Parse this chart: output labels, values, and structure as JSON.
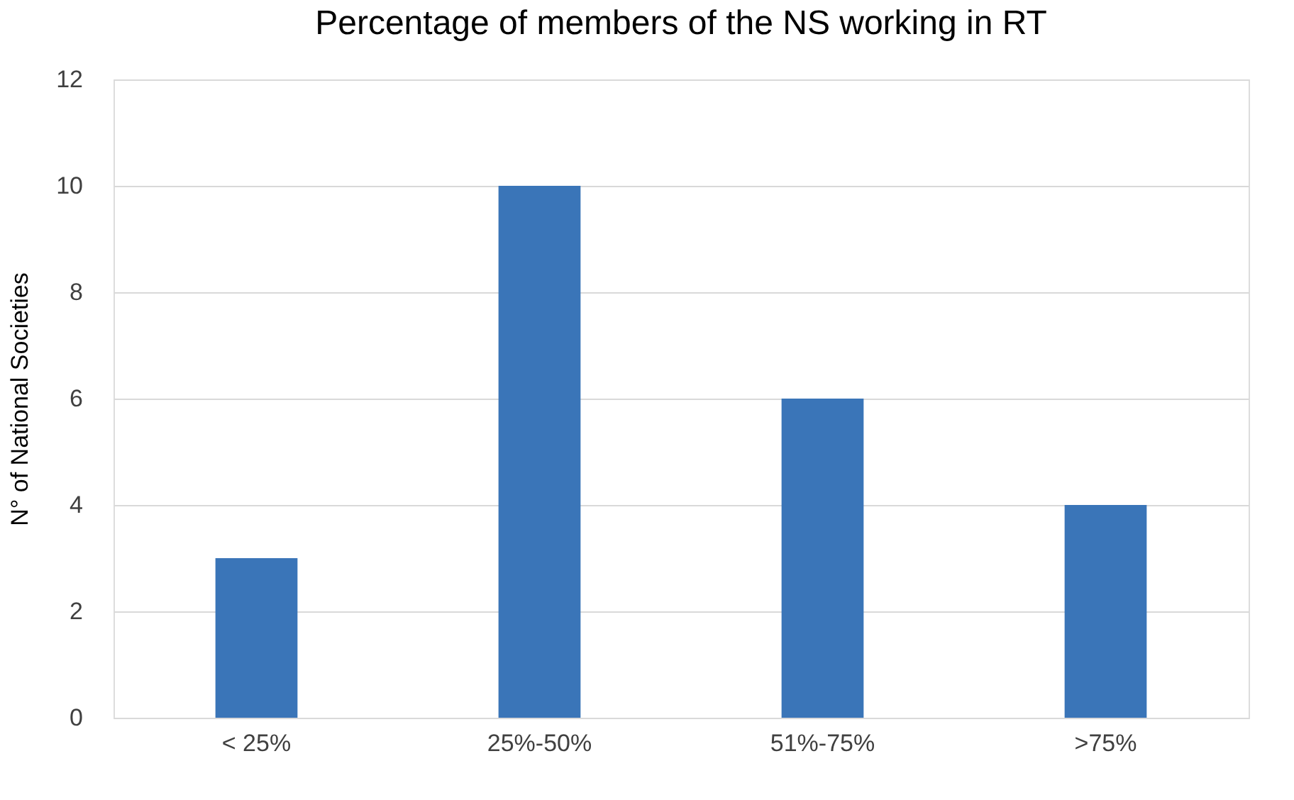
{
  "chart_data": {
    "type": "bar",
    "title": "Percentage of members of the NS working in RT",
    "ylabel": "N° of National Societies",
    "categories": [
      "< 25%",
      "25%-50%",
      "51%-75%",
      ">75%"
    ],
    "values": [
      3,
      10,
      6,
      4
    ],
    "color": "#3a75b8",
    "ylim": [
      0,
      12
    ],
    "yticks": [
      0,
      2,
      4,
      6,
      8,
      10,
      12
    ],
    "grid": "y"
  }
}
